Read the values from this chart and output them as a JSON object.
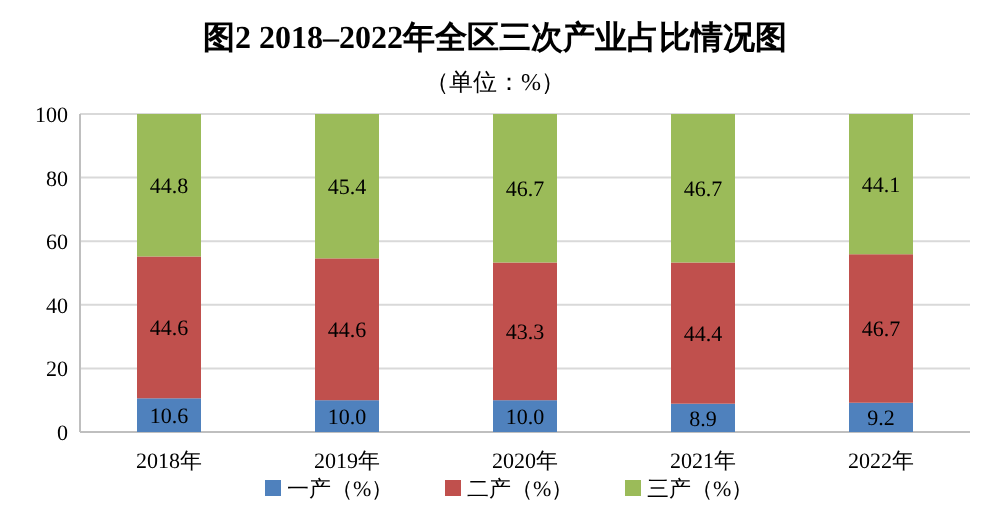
{
  "chart_data": {
    "type": "bar",
    "stacked": true,
    "title": "图2  2018–2022年全区三次产业占比情况图",
    "subtitle": "（单位：%）",
    "categories": [
      "2018年",
      "2019年",
      "2020年",
      "2021年",
      "2022年"
    ],
    "series": [
      {
        "name": "一产（%）",
        "color": "#4f81bd",
        "values": [
          10.6,
          10.0,
          10.0,
          8.9,
          9.2
        ],
        "value_labels": [
          "10.6",
          "10.0",
          "10.0",
          "8.9",
          "9.2"
        ]
      },
      {
        "name": "二产（%）",
        "color": "#c0504d",
        "values": [
          44.6,
          44.6,
          43.3,
          44.4,
          46.7
        ],
        "value_labels": [
          "44.6",
          "44.6",
          "43.3",
          "44.4",
          "46.7"
        ]
      },
      {
        "name": "三产（%）",
        "color": "#9bbb59",
        "values": [
          44.8,
          45.4,
          46.7,
          46.7,
          44.1
        ],
        "value_labels": [
          "44.8",
          "45.4",
          "46.7",
          "46.7",
          "44.1"
        ]
      }
    ],
    "ylim": [
      0,
      100
    ],
    "yticks": [
      0,
      20,
      40,
      60,
      80,
      100
    ],
    "grid": "y",
    "legend": "bottom"
  }
}
